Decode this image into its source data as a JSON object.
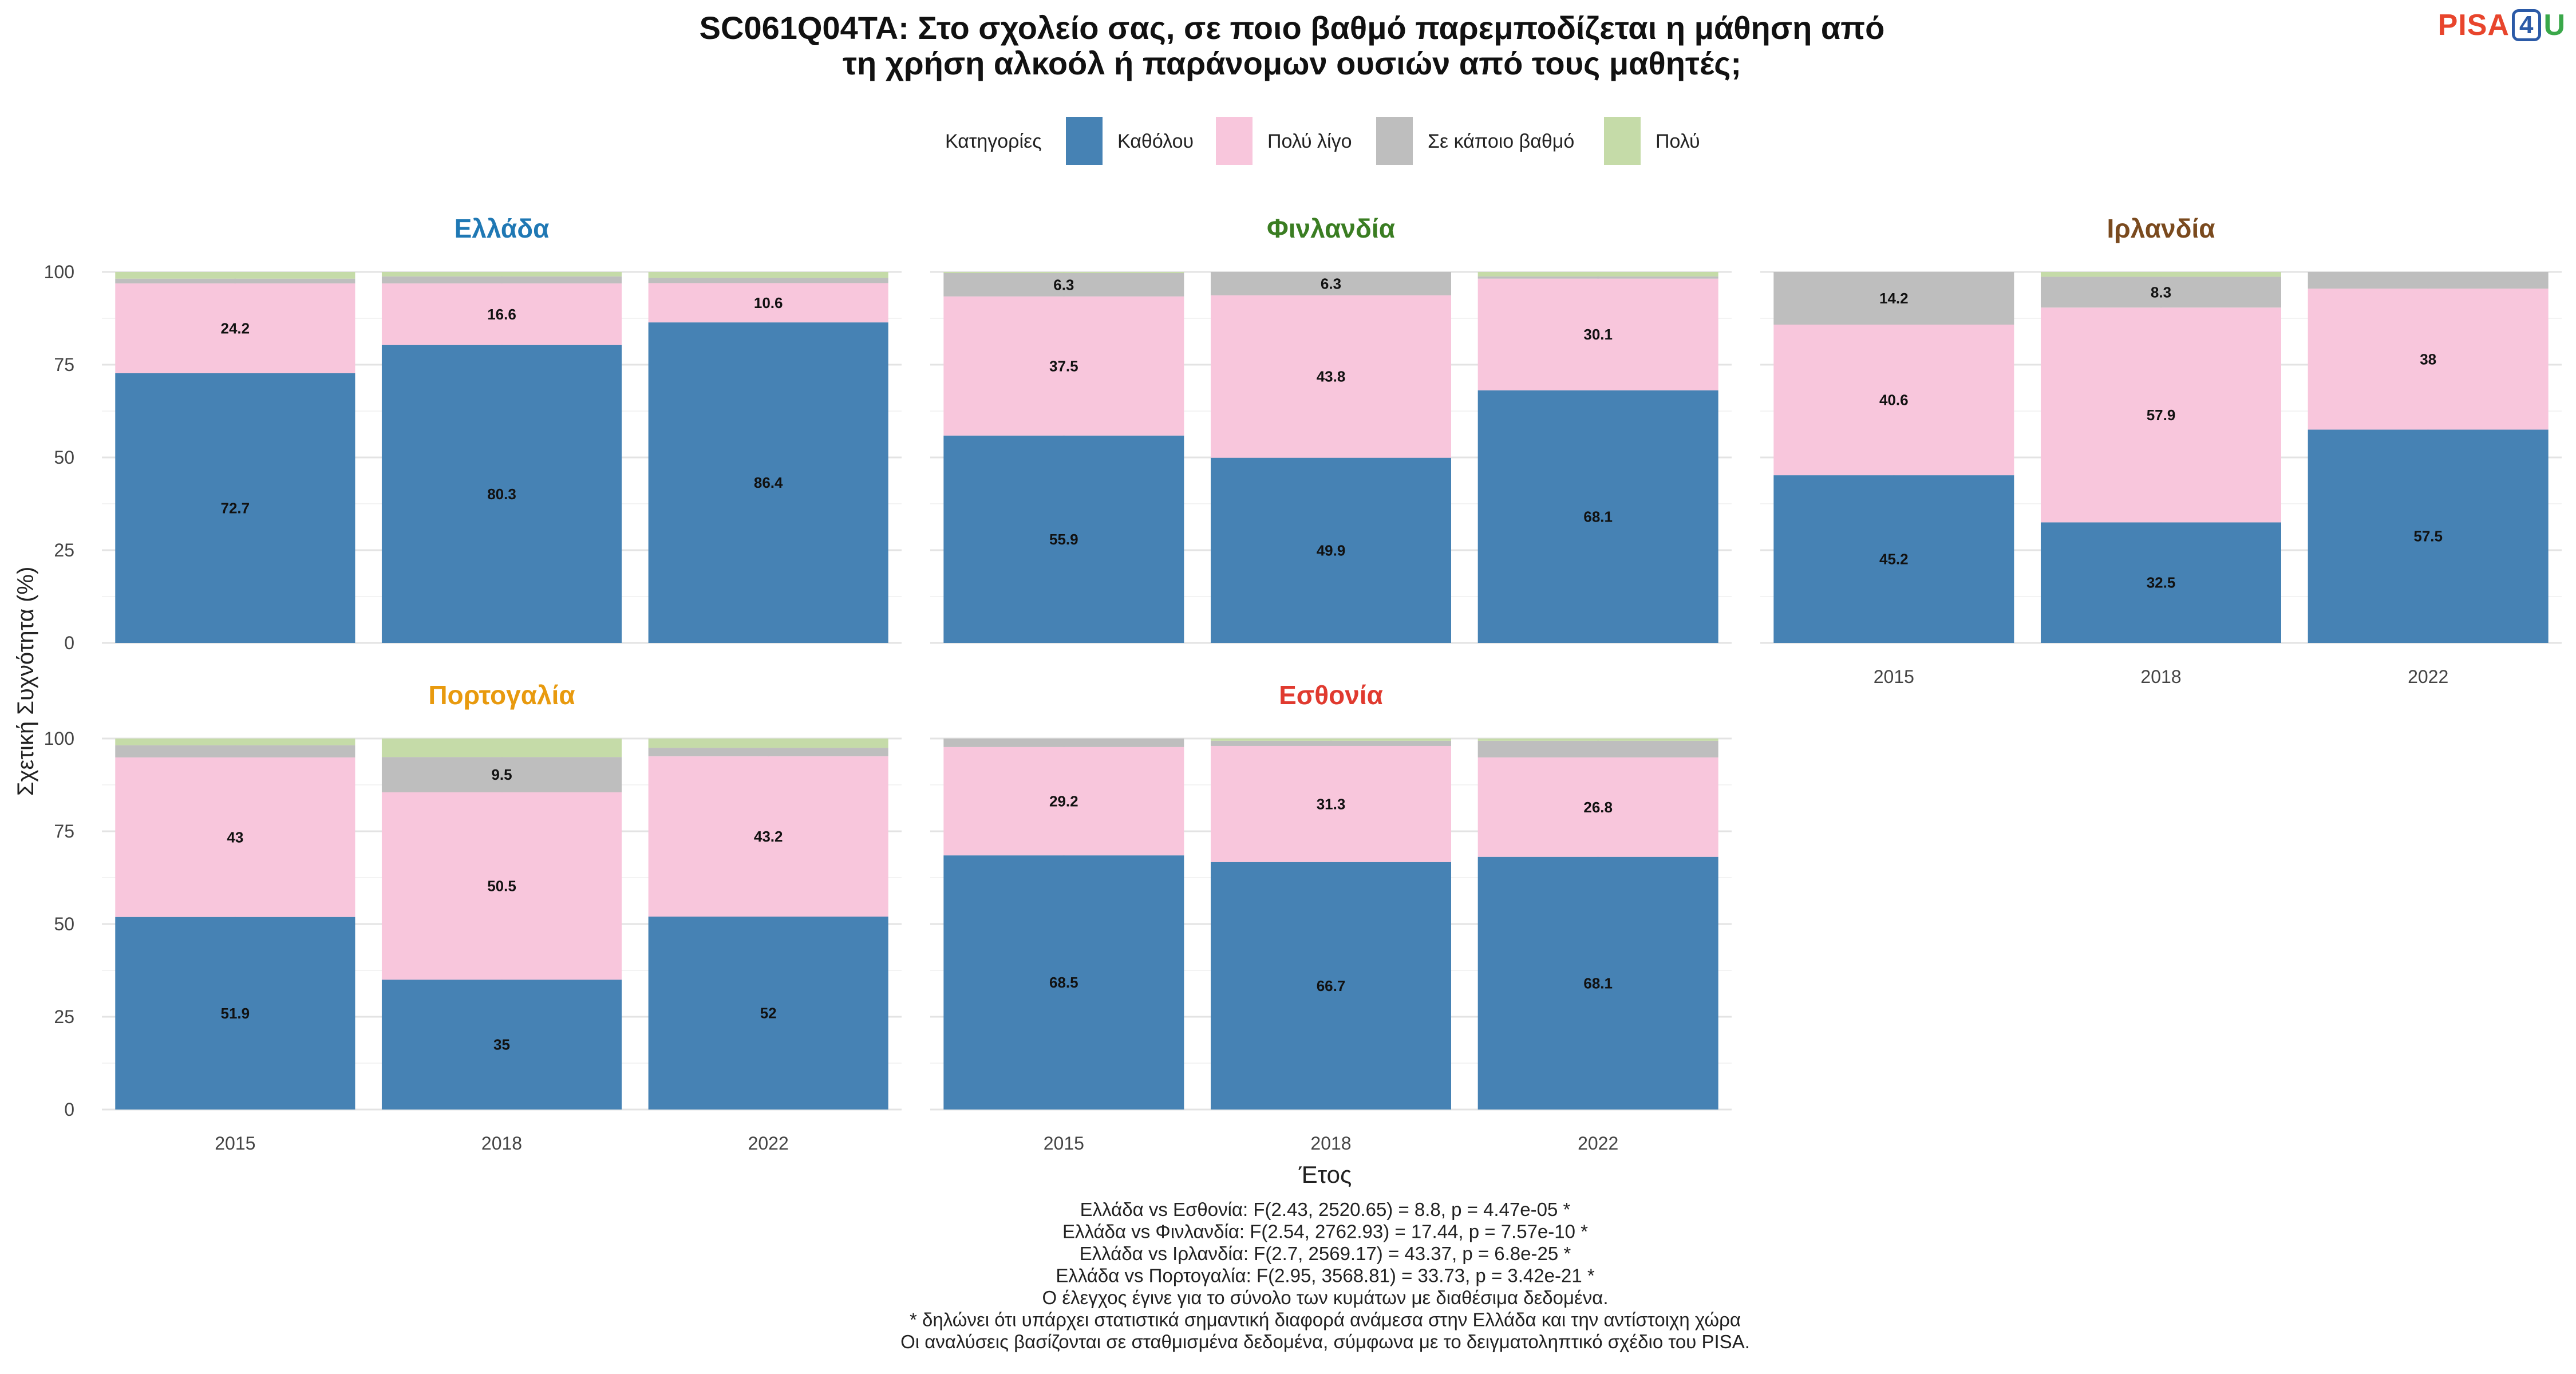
{
  "title_lines": [
    "SC061Q04TA: Στο σχολείο σας, σε ποιο βαθμό παρεμποδίζεται η μάθηση από",
    "τη χρήση αλκοόλ ή παράνομων ουσιών από τους μαθητές;"
  ],
  "logo": {
    "part1": "PISA",
    "boxed": "4",
    "part2": "U"
  },
  "legend": {
    "title": "Κατηγορίες",
    "items": [
      {
        "label": "Καθόλου",
        "color": "#4682B4"
      },
      {
        "label": "Πολύ λίγο",
        "color": "#F8C6DC"
      },
      {
        "label": "Σε κάποιο βαθμό",
        "color": "#BEBEBE"
      },
      {
        "label": "Πολύ",
        "color": "#C5DBA8"
      }
    ]
  },
  "ylabel": "Σχετική Συχνότητα (%)",
  "xlabel": "Έτος",
  "footnotes": [
    "Ελλάδα vs Εσθονία: F(2.43, 2520.65) = 8.8, p = 4.47e-05 *",
    "Ελλάδα vs Φινλανδία: F(2.54, 2762.93) = 17.44, p = 7.57e-10 *",
    "Ελλάδα vs Ιρλανδία: F(2.7, 2569.17) = 43.37, p = 6.8e-25 *",
    "Ελλάδα vs Πορτογαλία: F(2.95, 3568.81) = 33.73, p = 3.42e-21 *",
    "Ο έλεγχος έγινε για το σύνολο των κυμάτων με διαθέσιμα δεδομένα.",
    "* δηλώνει ότι υπάρχει στατιστικά σημαντική διαφορά ανάμεσα στην Ελλάδα και την αντίστοιχη χώρα",
    "Οι αναλύσεις βασίζονται σε σταθμισμένα δεδομένα, σύμφωνα με το δειγματοληπτικό σχέδιο του PISA."
  ],
  "chart_data": {
    "type": "bar",
    "stacked": true,
    "categories": [
      "2015",
      "2018",
      "2022"
    ],
    "ylim": [
      0,
      100
    ],
    "yticks": [
      0,
      25,
      50,
      75,
      100
    ],
    "grid": true,
    "legend_position": "top",
    "series_names": [
      "Καθόλου",
      "Πολύ λίγο",
      "Σε κάποιο βαθμό",
      "Πολύ"
    ],
    "panels": [
      {
        "country": "Ελλάδα",
        "title_color": "#1F78B4",
        "values": [
          [
            72.7,
            24.2,
            1.3,
            1.8
          ],
          [
            80.3,
            16.6,
            1.9,
            1.2
          ],
          [
            86.4,
            10.6,
            1.4,
            1.6
          ]
        ],
        "labels": [
          [
            "72.7",
            "24.2",
            "",
            ""
          ],
          [
            "80.3",
            "16.6",
            "",
            ""
          ],
          [
            "86.4",
            "10.6",
            "",
            ""
          ]
        ]
      },
      {
        "country": "Φινλανδία",
        "title_color": "#3A7D22",
        "values": [
          [
            55.9,
            37.5,
            6.3,
            0.3
          ],
          [
            49.9,
            43.8,
            6.3,
            0.0
          ],
          [
            68.1,
            30.1,
            0.6,
            1.2
          ]
        ],
        "labels": [
          [
            "55.9",
            "37.5",
            "6.3",
            ""
          ],
          [
            "49.9",
            "43.8",
            "6.3",
            ""
          ],
          [
            "68.1",
            "30.1",
            "",
            ""
          ]
        ]
      },
      {
        "country": "Ιρλανδία",
        "title_color": "#7A4A1E",
        "values": [
          [
            45.2,
            40.6,
            14.2,
            0.0
          ],
          [
            32.5,
            57.9,
            8.3,
            1.3
          ],
          [
            57.5,
            38.0,
            4.5,
            0.0
          ]
        ],
        "labels": [
          [
            "45.2",
            "40.6",
            "14.2",
            ""
          ],
          [
            "32.5",
            "57.9",
            "8.3",
            ""
          ],
          [
            "57.5",
            "38",
            "",
            ""
          ]
        ]
      },
      {
        "country": "Πορτογαλία",
        "title_color": "#E89A0E",
        "values": [
          [
            51.9,
            43.0,
            3.3,
            1.8
          ],
          [
            35.0,
            50.5,
            9.5,
            5.0
          ],
          [
            52.0,
            43.2,
            2.3,
            2.5
          ]
        ],
        "labels": [
          [
            "51.9",
            "43",
            "",
            ""
          ],
          [
            "35",
            "50.5",
            "9.5",
            ""
          ],
          [
            "52",
            "43.2",
            "",
            ""
          ]
        ]
      },
      {
        "country": "Εσθονία",
        "title_color": "#E03A2F",
        "values": [
          [
            68.5,
            29.2,
            2.3,
            0.0
          ],
          [
            66.7,
            31.3,
            1.4,
            0.6
          ],
          [
            68.1,
            26.8,
            4.5,
            0.6
          ]
        ],
        "labels": [
          [
            "68.5",
            "29.2",
            "",
            ""
          ],
          [
            "66.7",
            "31.3",
            "",
            ""
          ],
          [
            "68.1",
            "26.8",
            "",
            ""
          ]
        ]
      }
    ]
  }
}
